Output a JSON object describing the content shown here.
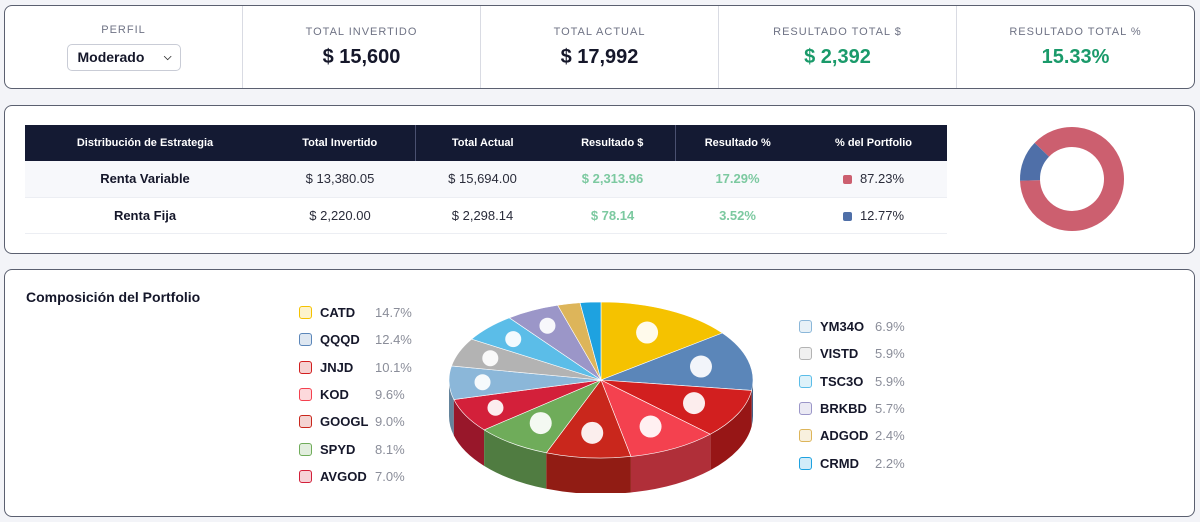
{
  "summary": {
    "profile_label": "PERFIL",
    "profile_value": "Moderado",
    "total_invested_label": "TOTAL INVERTIDO",
    "total_invested": "$ 15,600",
    "total_current_label": "TOTAL ACTUAL",
    "total_current": "$ 17,992",
    "result_usd_label": "RESULTADO TOTAL $",
    "result_usd": "$ 2,392",
    "result_pct_label": "RESULTADO TOTAL %",
    "result_pct": "15.33%"
  },
  "strategy": {
    "headers": [
      "Distribución de Estrategia",
      "Total Invertido",
      "Total Actual",
      "Resultado $",
      "Resultado %",
      "% del Portfolio"
    ],
    "rows": [
      {
        "name": "Renta Variable",
        "invested": "$ 13,380.05",
        "current": "$ 15,694.00",
        "result": "$ 2,313.96",
        "result_pct": "17.29%",
        "portfolio_pct": "87.23%",
        "color": "#cc5f6f"
      },
      {
        "name": "Renta Fija",
        "invested": "$ 2,220.00",
        "current": "$ 2,298.14",
        "result": "$ 78.14",
        "result_pct": "3.52%",
        "portfolio_pct": "12.77%",
        "color": "#4f6fa8"
      }
    ],
    "donut": [
      87.23,
      12.77
    ]
  },
  "composition": {
    "title": "Composición del Portfolio",
    "left": [
      {
        "ticker": "CATD",
        "pct": "14.7%",
        "icon": "caterpillar-icon",
        "color": "#f5c200"
      },
      {
        "ticker": "QQQD",
        "pct": "12.4%",
        "icon": "invesco-icon",
        "color": "#5b86b9"
      },
      {
        "ticker": "JNJD",
        "pct": "10.1%",
        "icon": "jnj-icon",
        "color": "#d21f1f"
      },
      {
        "ticker": "KOD",
        "pct": "9.6%",
        "icon": "cocacola-icon",
        "color": "#f4414f"
      },
      {
        "ticker": "GOOGL",
        "pct": "9.0%",
        "icon": "google-icon",
        "color": "#c9271c"
      },
      {
        "ticker": "SPYD",
        "pct": "8.1%",
        "icon": "spdr-icon",
        "color": "#6fac5a"
      },
      {
        "ticker": "AVGOD",
        "pct": "7.0%",
        "icon": "broadcom-icon",
        "color": "#d3203a"
      }
    ],
    "right": [
      {
        "ticker": "YM34O",
        "pct": "6.9%",
        "icon": "yum-icon",
        "color": "#8bb7d9"
      },
      {
        "ticker": "VISTD",
        "pct": "5.9%",
        "icon": "vista-icon",
        "color": "#b3b3b3"
      },
      {
        "ticker": "TSC3O",
        "pct": "5.9%",
        "icon": "tesco-icon",
        "color": "#5bbde8"
      },
      {
        "ticker": "BRKBD",
        "pct": "5.7%",
        "icon": "berkshire-icon",
        "color": "#9b96c8"
      },
      {
        "ticker": "ADGOD",
        "pct": "2.4%",
        "icon": "adecoagro-icon",
        "color": "#ddb55a"
      },
      {
        "ticker": "CRMD",
        "pct": "2.2%",
        "icon": "salesforce-icon",
        "color": "#1ea2e0"
      }
    ]
  },
  "chart_data": [
    {
      "type": "pie",
      "categories": [
        "Renta Variable",
        "Renta Fija"
      ],
      "values": [
        87.23,
        12.77
      ]
    },
    {
      "type": "pie",
      "categories": [
        "CATD",
        "QQQD",
        "JNJD",
        "KOD",
        "GOOGL",
        "SPYD",
        "AVGOD",
        "YM34O",
        "VISTD",
        "TSC3O",
        "BRKBD",
        "ADGOD",
        "CRMD"
      ],
      "values": [
        14.7,
        12.4,
        10.1,
        9.6,
        9.0,
        8.1,
        7.0,
        6.9,
        5.9,
        5.9,
        5.7,
        2.4,
        2.2
      ]
    }
  ]
}
